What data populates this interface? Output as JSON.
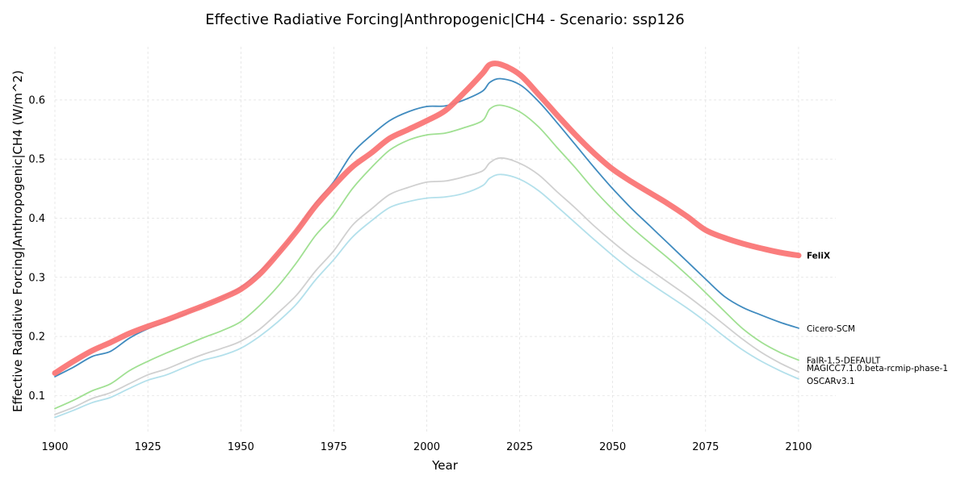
{
  "chart_data": {
    "type": "line",
    "title": "Effective Radiative Forcing|Anthropogenic|CH4 - Scenario: ssp126",
    "xlabel": "Year",
    "ylabel": "Effective Radiative Forcing|Anthropogenic|CH4 (W/m^2)",
    "xlim": [
      1900,
      2110
    ],
    "ylim": [
      0.035,
      0.69
    ],
    "xticks": [
      1900,
      1925,
      1950,
      1975,
      2000,
      2025,
      2050,
      2075,
      2100
    ],
    "yticks": [
      0.1,
      0.2,
      0.3,
      0.4,
      0.5,
      0.6
    ],
    "ytick_labels": [
      "0.1",
      "0.2",
      "0.3",
      "0.4",
      "0.5",
      "0.6"
    ],
    "grid": true,
    "legend": "line-end labels",
    "series": [
      {
        "name": "Cicero-SCM",
        "color": "#1f77b4",
        "bold": false,
        "x": [
          1900,
          1905,
          1910,
          1915,
          1920,
          1925,
          1930,
          1935,
          1940,
          1945,
          1950,
          1955,
          1960,
          1965,
          1970,
          1975,
          1980,
          1985,
          1990,
          1995,
          2000,
          2005,
          2010,
          2015,
          2017,
          2020,
          2025,
          2030,
          2035,
          2040,
          2045,
          2050,
          2055,
          2060,
          2065,
          2070,
          2075,
          2080,
          2085,
          2090,
          2095,
          2100
        ],
        "y": [
          0.132,
          0.148,
          0.166,
          0.175,
          0.197,
          0.213,
          0.225,
          0.238,
          0.252,
          0.266,
          0.283,
          0.31,
          0.34,
          0.38,
          0.425,
          0.462,
          0.51,
          0.54,
          0.565,
          0.58,
          0.589,
          0.59,
          0.6,
          0.615,
          0.63,
          0.636,
          0.626,
          0.598,
          0.562,
          0.524,
          0.486,
          0.45,
          0.417,
          0.387,
          0.357,
          0.327,
          0.297,
          0.268,
          0.249,
          0.236,
          0.224,
          0.214
        ]
      },
      {
        "name": "FaIR-1.5-DEFAULT",
        "color": "#8fdb7f",
        "bold": false,
        "x": [
          1900,
          1905,
          1910,
          1915,
          1920,
          1925,
          1930,
          1935,
          1940,
          1945,
          1950,
          1955,
          1960,
          1965,
          1970,
          1975,
          1980,
          1985,
          1990,
          1995,
          2000,
          2005,
          2010,
          2015,
          2017,
          2020,
          2025,
          2030,
          2035,
          2040,
          2045,
          2050,
          2055,
          2060,
          2065,
          2070,
          2075,
          2080,
          2085,
          2090,
          2095,
          2100
        ],
        "y": [
          0.078,
          0.092,
          0.108,
          0.12,
          0.142,
          0.158,
          0.172,
          0.185,
          0.198,
          0.21,
          0.225,
          0.252,
          0.285,
          0.325,
          0.37,
          0.405,
          0.45,
          0.485,
          0.515,
          0.532,
          0.541,
          0.544,
          0.553,
          0.565,
          0.585,
          0.591,
          0.58,
          0.555,
          0.52,
          0.485,
          0.448,
          0.415,
          0.385,
          0.358,
          0.332,
          0.304,
          0.274,
          0.243,
          0.213,
          0.19,
          0.173,
          0.16
        ]
      },
      {
        "name": "MAGICC7.1.0.beta-rcmip-phase-1",
        "color": "#c8c8c8",
        "bold": false,
        "x": [
          1900,
          1905,
          1910,
          1915,
          1920,
          1925,
          1930,
          1935,
          1940,
          1945,
          1950,
          1955,
          1960,
          1965,
          1970,
          1975,
          1980,
          1985,
          1990,
          1995,
          2000,
          2005,
          2010,
          2015,
          2017,
          2020,
          2025,
          2030,
          2035,
          2040,
          2045,
          2050,
          2055,
          2060,
          2065,
          2070,
          2075,
          2080,
          2085,
          2090,
          2095,
          2100
        ],
        "y": [
          0.068,
          0.08,
          0.095,
          0.105,
          0.12,
          0.135,
          0.145,
          0.158,
          0.17,
          0.18,
          0.192,
          0.212,
          0.24,
          0.27,
          0.31,
          0.345,
          0.388,
          0.415,
          0.44,
          0.452,
          0.461,
          0.463,
          0.47,
          0.48,
          0.494,
          0.502,
          0.493,
          0.474,
          0.445,
          0.417,
          0.387,
          0.36,
          0.335,
          0.313,
          0.291,
          0.269,
          0.245,
          0.22,
          0.195,
          0.173,
          0.155,
          0.14
        ]
      },
      {
        "name": "OSCARv3.1",
        "color": "#a6dbe8",
        "bold": false,
        "x": [
          1900,
          1905,
          1910,
          1915,
          1920,
          1925,
          1930,
          1935,
          1940,
          1945,
          1950,
          1955,
          1960,
          1965,
          1970,
          1975,
          1980,
          1985,
          1990,
          1995,
          2000,
          2005,
          2010,
          2015,
          2017,
          2020,
          2025,
          2030,
          2035,
          2040,
          2045,
          2050,
          2055,
          2060,
          2065,
          2070,
          2075,
          2080,
          2085,
          2090,
          2095,
          2100
        ],
        "y": [
          0.063,
          0.075,
          0.088,
          0.097,
          0.112,
          0.126,
          0.135,
          0.148,
          0.16,
          0.168,
          0.18,
          0.2,
          0.225,
          0.255,
          0.295,
          0.33,
          0.368,
          0.395,
          0.418,
          0.428,
          0.434,
          0.436,
          0.442,
          0.455,
          0.468,
          0.474,
          0.466,
          0.447,
          0.42,
          0.392,
          0.364,
          0.337,
          0.312,
          0.29,
          0.269,
          0.248,
          0.225,
          0.2,
          0.177,
          0.158,
          0.142,
          0.128
        ]
      },
      {
        "name": "FeliX",
        "color": "#fa7676",
        "bold": true,
        "x": [
          1900,
          1905,
          1910,
          1915,
          1920,
          1925,
          1930,
          1935,
          1940,
          1945,
          1950,
          1955,
          1960,
          1965,
          1970,
          1975,
          1980,
          1985,
          1990,
          1995,
          2000,
          2005,
          2010,
          2015,
          2017,
          2020,
          2025,
          2030,
          2035,
          2040,
          2045,
          2050,
          2055,
          2060,
          2065,
          2070,
          2075,
          2080,
          2085,
          2090,
          2095,
          2100
        ],
        "y": [
          0.138,
          0.158,
          0.176,
          0.19,
          0.205,
          0.217,
          0.228,
          0.24,
          0.252,
          0.265,
          0.28,
          0.305,
          0.34,
          0.378,
          0.42,
          0.455,
          0.487,
          0.51,
          0.535,
          0.55,
          0.565,
          0.582,
          0.612,
          0.645,
          0.66,
          0.66,
          0.643,
          0.61,
          0.575,
          0.541,
          0.51,
          0.483,
          0.462,
          0.443,
          0.424,
          0.403,
          0.38,
          0.367,
          0.357,
          0.349,
          0.342,
          0.337
        ]
      }
    ]
  }
}
